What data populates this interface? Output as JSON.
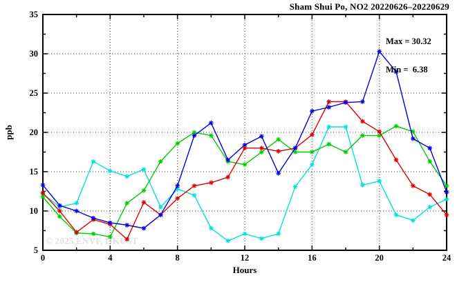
{
  "header": {
    "title": "Sham Shui Po, NO2 20220626–20220629"
  },
  "annotations": {
    "max_label": "Max = 30.32",
    "min_label": "Min =  6.38"
  },
  "watermark": {
    "text": "© 2025 ENVF, HKUST"
  },
  "axes": {
    "x_label": "Hours",
    "y_label": "ppb"
  },
  "colors": {
    "blue": "#0000dd",
    "red": "#dd0000",
    "green": "#00cc00",
    "cyan": "#00e0e0",
    "grid": "#444444",
    "axis": "#000000"
  },
  "chart_data": {
    "type": "line",
    "title": "Sham Shui Po, NO2 20220626–20220629",
    "xlabel": "Hours",
    "ylabel": "ppb",
    "legend": "none",
    "grid": "dotted",
    "max_annotation": 30.32,
    "min_annotation": 6.38,
    "x": [
      0,
      1,
      2,
      3,
      4,
      5,
      6,
      7,
      8,
      9,
      10,
      11,
      12,
      13,
      14,
      15,
      16,
      17,
      18,
      19,
      20,
      21,
      22,
      23,
      24
    ],
    "x_axis": {
      "min": 0,
      "max": 24,
      "major_ticks": [
        0,
        4,
        8,
        12,
        16,
        20,
        24
      ],
      "minor_ticks": [
        2,
        6,
        10,
        14,
        18,
        22
      ],
      "grid_at": [
        4,
        8,
        12,
        16,
        20
      ]
    },
    "y_axis": {
      "min": 5,
      "max": 35,
      "major_ticks": [
        5,
        10,
        15,
        20,
        25,
        30,
        35
      ],
      "minor_ticks": [
        7.5,
        12.5,
        17.5,
        22.5,
        27.5,
        32.5
      ],
      "grid_at": [
        10,
        15,
        20,
        25,
        30
      ]
    },
    "series": [
      {
        "name": "cyan",
        "color": "#00e0e0",
        "values": [
          12.2,
          10.5,
          11.0,
          16.3,
          15.1,
          14.4,
          15.3,
          10.5,
          12.8,
          12.0,
          7.8,
          6.2,
          7.1,
          6.5,
          7.1,
          13.1,
          15.9,
          20.7,
          20.7,
          13.3,
          13.8,
          9.5,
          8.8,
          10.5,
          11.5
        ]
      },
      {
        "name": "green",
        "color": "#00cc00",
        "values": [
          11.8,
          9.3,
          7.2,
          7.1,
          6.7,
          11.0,
          12.6,
          16.3,
          18.6,
          20.0,
          19.6,
          16.3,
          15.9,
          17.5,
          19.1,
          17.5,
          17.5,
          18.5,
          17.5,
          19.6,
          19.6,
          20.8,
          20.1,
          16.3,
          13.2
        ]
      },
      {
        "name": "red",
        "color": "#dd0000",
        "values": [
          12.3,
          10.0,
          7.3,
          8.9,
          8.3,
          6.4,
          11.1,
          9.5,
          11.6,
          13.2,
          13.6,
          14.3,
          18.0,
          18.0,
          17.6,
          18.0,
          19.7,
          23.9,
          23.9,
          21.4,
          20.1,
          16.5,
          13.2,
          12.1,
          9.5
        ]
      },
      {
        "name": "blue",
        "color": "#0000dd",
        "values": [
          13.3,
          10.7,
          10.0,
          9.1,
          8.5,
          8.2,
          7.8,
          9.5,
          13.2,
          19.6,
          21.2,
          16.5,
          18.4,
          19.5,
          14.8,
          18.0,
          22.7,
          23.2,
          23.8,
          23.9,
          30.3,
          27.7,
          19.2,
          18.0,
          12.4
        ]
      }
    ]
  }
}
